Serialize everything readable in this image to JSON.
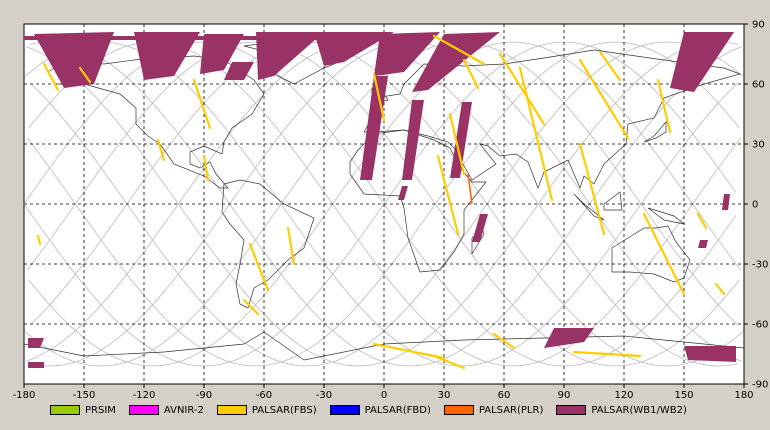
{
  "chart_data": {
    "type": "map",
    "projection": "equirectangular",
    "xlim": [
      -180,
      180
    ],
    "ylim": [
      -90,
      90
    ],
    "x_ticks": [
      "-180",
      "-150",
      "-120",
      "-90",
      "-60",
      "-30",
      "0",
      "30",
      "60",
      "90",
      "120",
      "150",
      "180"
    ],
    "y_ticks": [
      "90",
      "60",
      "30",
      "0",
      "-30",
      "-60",
      "-90"
    ],
    "grid": true,
    "legend_position": "bottom",
    "legend": [
      {
        "name": "PRSIM",
        "color": "#99cc00"
      },
      {
        "name": "AVNIR-2",
        "color": "#ff00ff"
      },
      {
        "name": "PALSAR(FBS)",
        "color": "#ffcc00"
      },
      {
        "name": "PALSAR(FBD)",
        "color": "#0000ff"
      },
      {
        "name": "PALSAR(PLR)",
        "color": "#ff6600"
      },
      {
        "name": "PALSAR(WB1/WB2)",
        "color": "#993366"
      }
    ],
    "wb_swaths": [
      [
        [
          -175,
          85
        ],
        [
          -135,
          86
        ],
        [
          -145,
          60
        ],
        [
          -160,
          58
        ]
      ],
      [
        [
          -125,
          86
        ],
        [
          -92,
          86
        ],
        [
          -105,
          64
        ],
        [
          -120,
          62
        ]
      ],
      [
        [
          -90,
          85
        ],
        [
          -70,
          85
        ],
        [
          -80,
          67
        ],
        [
          -92,
          65
        ]
      ],
      [
        [
          -76,
          71
        ],
        [
          -65,
          71
        ],
        [
          -70,
          62
        ],
        [
          -80,
          62
        ]
      ],
      [
        [
          -64,
          86
        ],
        [
          -30,
          86
        ],
        [
          -55,
          64
        ],
        [
          -63,
          62
        ]
      ],
      [
        [
          -35,
          86
        ],
        [
          5,
          86
        ],
        [
          -20,
          71
        ],
        [
          -30,
          69
        ]
      ],
      [
        [
          -2,
          85
        ],
        [
          28,
          86
        ],
        [
          10,
          66
        ],
        [
          -5,
          64
        ]
      ],
      [
        [
          30,
          85
        ],
        [
          58,
          86
        ],
        [
          22,
          57
        ],
        [
          14,
          56
        ]
      ],
      [
        [
          -5,
          64
        ],
        [
          2,
          64
        ],
        [
          -6,
          12
        ],
        [
          -12,
          12
        ]
      ],
      [
        [
          14,
          52
        ],
        [
          20,
          52
        ],
        [
          14,
          12
        ],
        [
          9,
          12
        ]
      ],
      [
        [
          39,
          51
        ],
        [
          44,
          51
        ],
        [
          38,
          13
        ],
        [
          33,
          13
        ]
      ],
      [
        [
          9,
          9
        ],
        [
          12,
          9
        ],
        [
          10,
          2
        ],
        [
          7,
          2
        ]
      ],
      [
        [
          48,
          -5
        ],
        [
          52,
          -5
        ],
        [
          48,
          -19
        ],
        [
          44,
          -19
        ]
      ],
      [
        [
          150,
          86
        ],
        [
          175,
          86
        ],
        [
          155,
          56
        ],
        [
          143,
          58
        ]
      ],
      [
        [
          170,
          5
        ],
        [
          173,
          5
        ],
        [
          172,
          -3
        ],
        [
          169,
          -3
        ]
      ],
      [
        [
          158,
          -18
        ],
        [
          162,
          -18
        ],
        [
          161,
          -22
        ],
        [
          157,
          -22
        ]
      ],
      [
        [
          -178,
          -67
        ],
        [
          -170,
          -67
        ],
        [
          -172,
          -72
        ],
        [
          -178,
          -72
        ]
      ],
      [
        [
          -178,
          -79
        ],
        [
          -170,
          -79
        ],
        [
          -170,
          -82
        ],
        [
          -178,
          -82
        ]
      ],
      [
        [
          85,
          -62
        ],
        [
          105,
          -62
        ],
        [
          100,
          -69
        ],
        [
          80,
          -72
        ]
      ],
      [
        [
          150,
          -71
        ],
        [
          176,
          -71
        ],
        [
          176,
          -79
        ],
        [
          152,
          -78
        ]
      ],
      [
        [
          -180,
          84
        ],
        [
          0,
          84
        ],
        [
          -20,
          82
        ],
        [
          -180,
          82
        ]
      ]
    ],
    "fbs_strips": [
      [
        [
          -170,
          70
        ],
        [
          -163,
          57
        ]
      ],
      [
        [
          -152,
          68
        ],
        [
          -147,
          61
        ]
      ],
      [
        [
          -95,
          62
        ],
        [
          -87,
          38
        ]
      ],
      [
        [
          -113,
          32
        ],
        [
          -110,
          22
        ]
      ],
      [
        [
          -90,
          24
        ],
        [
          -88,
          12
        ]
      ],
      [
        [
          -67,
          -20
        ],
        [
          -58,
          -43
        ]
      ],
      [
        [
          -48,
          -12
        ],
        [
          -45,
          -30
        ]
      ],
      [
        [
          -70,
          -48
        ],
        [
          -63,
          -55
        ]
      ],
      [
        [
          -173,
          -16
        ],
        [
          -172,
          -20
        ]
      ],
      [
        [
          -5,
          65
        ],
        [
          0,
          42
        ]
      ],
      [
        [
          25,
          84
        ],
        [
          50,
          70
        ]
      ],
      [
        [
          40,
          72
        ],
        [
          47,
          58
        ]
      ],
      [
        [
          33,
          45
        ],
        [
          40,
          15
        ]
      ],
      [
        [
          27,
          24
        ],
        [
          37,
          -15
        ]
      ],
      [
        [
          58,
          75
        ],
        [
          80,
          40
        ]
      ],
      [
        [
          68,
          68
        ],
        [
          84,
          2
        ]
      ],
      [
        [
          98,
          72
        ],
        [
          122,
          33
        ]
      ],
      [
        [
          98,
          30
        ],
        [
          110,
          -15
        ]
      ],
      [
        [
          108,
          76
        ],
        [
          118,
          62
        ]
      ],
      [
        [
          137,
          62
        ],
        [
          143,
          36
        ]
      ],
      [
        [
          130,
          -5
        ],
        [
          150,
          -45
        ]
      ],
      [
        [
          157,
          -5
        ],
        [
          161,
          -12
        ]
      ],
      [
        [
          166,
          -40
        ],
        [
          170,
          -45
        ]
      ],
      [
        [
          -5,
          -70
        ],
        [
          30,
          -77
        ]
      ],
      [
        [
          25,
          -76
        ],
        [
          40,
          -82
        ]
      ],
      [
        [
          55,
          -65
        ],
        [
          65,
          -72
        ]
      ],
      [
        [
          95,
          -74
        ],
        [
          128,
          -76
        ]
      ]
    ],
    "plr_strips": [
      [
        [
          42,
          15
        ],
        [
          44,
          0
        ]
      ]
    ],
    "orbit_count": 14
  }
}
